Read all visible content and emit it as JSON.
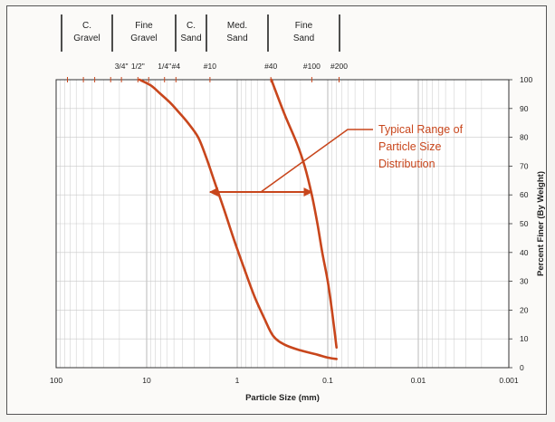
{
  "chart_data": {
    "type": "line",
    "x_scale": "log",
    "x_reversed": true,
    "xlim": [
      100,
      0.001
    ],
    "ylim": [
      0,
      100
    ],
    "grid": true,
    "xlabel": "Particle Size (mm)",
    "ylabel": "Percent Finer (By Weight)",
    "x_tick_labels": [
      "100",
      "10",
      "1",
      "0.1",
      "0.01",
      "0.001"
    ],
    "x_tick_values": [
      100,
      10,
      1,
      0.1,
      0.01,
      0.001
    ],
    "y_ticks": [
      0,
      10,
      20,
      30,
      40,
      50,
      60,
      70,
      80,
      90,
      100
    ],
    "soil_classes": [
      {
        "line1": "C.",
        "line2": "Gravel"
      },
      {
        "line1": "Fine",
        "line2": "Gravel"
      },
      {
        "line1": "C.",
        "line2": "Sand"
      },
      {
        "line1": "Med.",
        "line2": "Sand"
      },
      {
        "line1": "Fine",
        "line2": "Sand"
      }
    ],
    "sieve_labels": [
      {
        "label": "3/4\"",
        "size": 19.0
      },
      {
        "label": "1/2\"",
        "size": 12.5
      },
      {
        "label": "1/4\"",
        "size": 6.35
      },
      {
        "label": "#4",
        "size": 4.75
      },
      {
        "label": "#10",
        "size": 2.0
      },
      {
        "label": "#40",
        "size": 0.425
      },
      {
        "label": "#100",
        "size": 0.15
      },
      {
        "label": "#200",
        "size": 0.075
      }
    ],
    "series": [
      {
        "color": "#c8461c",
        "points": [
          [
            12,
            100
          ],
          [
            9,
            98
          ],
          [
            7,
            95
          ],
          [
            5.5,
            92
          ],
          [
            4.5,
            89
          ],
          [
            3.5,
            85
          ],
          [
            2.7,
            80
          ],
          [
            2.2,
            73
          ],
          [
            1.8,
            65
          ],
          [
            1.4,
            55
          ],
          [
            1.1,
            45
          ],
          [
            0.85,
            35
          ],
          [
            0.65,
            25
          ],
          [
            0.5,
            17
          ],
          [
            0.4,
            11
          ],
          [
            0.3,
            8
          ],
          [
            0.2,
            6
          ],
          [
            0.13,
            4.5
          ],
          [
            0.1,
            3.5
          ],
          [
            0.08,
            3
          ]
        ]
      },
      {
        "color": "#c8461c",
        "points": [
          [
            0.42,
            100
          ],
          [
            0.3,
            88
          ],
          [
            0.22,
            78
          ],
          [
            0.18,
            70
          ],
          [
            0.15,
            60
          ],
          [
            0.13,
            50
          ],
          [
            0.115,
            40
          ],
          [
            0.1,
            30
          ],
          [
            0.09,
            20
          ],
          [
            0.08,
            7
          ]
        ]
      }
    ],
    "annotation": {
      "lines": [
        "Typical Range of",
        "Particle Size",
        "Distribution"
      ],
      "arrow_y": 61,
      "arrow_x_from": 2.0,
      "arrow_x_to": 0.15,
      "color": "#c8461c"
    }
  }
}
